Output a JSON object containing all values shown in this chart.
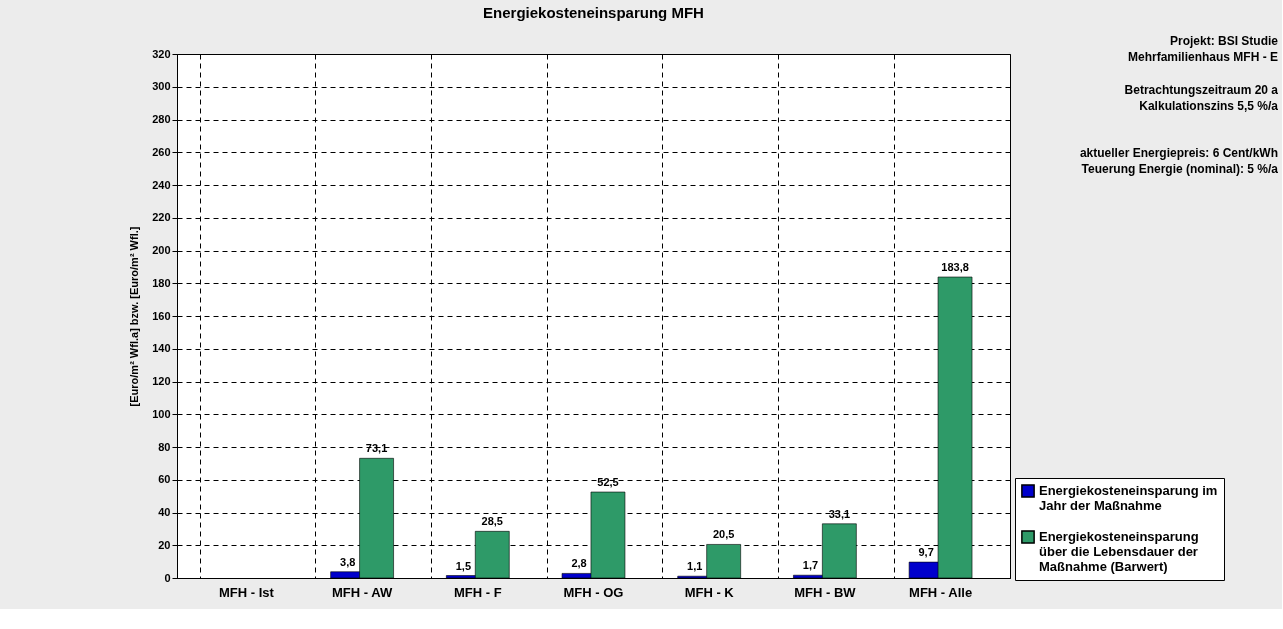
{
  "chart_data": {
    "type": "bar",
    "title": "Energiekosteneinsparung MFH",
    "ylabel": "[Euro/m² Wfl.a] bzw. [Euro/m² Wfl.]",
    "categories": [
      "MFH - Ist",
      "MFH - AW",
      "MFH - F",
      "MFH - OG",
      "MFH - K",
      "MFH - BW",
      "MFH - Alle"
    ],
    "series": [
      {
        "name": "Energiekosteneinsparung im Jahr der Maßnahme",
        "color": "#0000cc",
        "values": [
          null,
          3.8,
          1.5,
          2.8,
          1.1,
          1.7,
          9.7
        ],
        "value_labels": [
          null,
          "3,8",
          "1,5",
          "2,8",
          "1,1",
          "1,7",
          "9,7"
        ]
      },
      {
        "name": "Energiekosteneinsparung über die Lebensdauer der Maßnahme (Barwert)",
        "color": "#2e9a68",
        "values": [
          null,
          73.1,
          28.5,
          52.5,
          20.5,
          33.1,
          183.8
        ],
        "value_labels": [
          null,
          "73,1",
          "28,5",
          "52,5",
          "20,5",
          "33,1",
          "183,8"
        ]
      }
    ],
    "ylim": [
      0,
      320
    ],
    "yticks": [
      0,
      20,
      40,
      60,
      80,
      100,
      120,
      140,
      160,
      180,
      200,
      220,
      240,
      260,
      280,
      300,
      320
    ],
    "grid": true,
    "legend": "right",
    "annotations": [
      "Projekt: BSI Studie",
      "Mehrfamilienhaus MFH - E",
      "Betrachtungszeitraum 20 a",
      "Kalkulationszins 5,5 %/a",
      "aktueller Energiepreis: 6 Cent/kWh",
      "Teuerung Energie (nominal): 5 %/a"
    ]
  }
}
